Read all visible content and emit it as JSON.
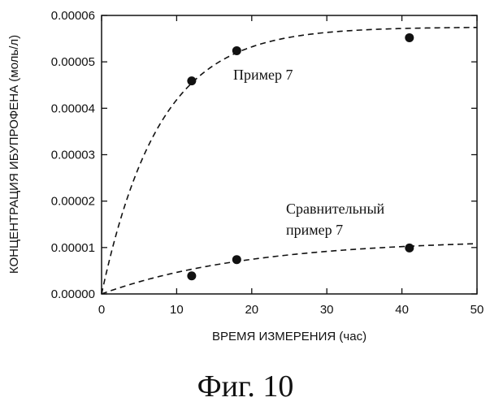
{
  "chart_data": {
    "type": "scatter",
    "xlabel": "ВРЕМЯ ИЗМЕРЕНИЯ (час)",
    "ylabel": "КОНЦЕНТРАЦИЯ ИБУПРОФЕНА (моль/л)",
    "xlim": [
      0,
      50
    ],
    "ylim": [
      0,
      6e-05
    ],
    "x_ticks": [
      "0",
      "10",
      "20",
      "30",
      "40",
      "50"
    ],
    "y_ticks": [
      "0.00000",
      "0.00001",
      "0.00002",
      "0.00003",
      "0.00004",
      "0.00005",
      "0.00006"
    ],
    "grid": false,
    "series": [
      {
        "name": "Пример 7",
        "points": [
          {
            "x": 12,
            "y": 4.59e-05
          },
          {
            "x": 18,
            "y": 5.24e-05
          },
          {
            "x": 41,
            "y": 5.52e-05
          }
        ],
        "fit": {
          "type": "exponential-saturation",
          "a": 5.75e-05,
          "k": 0.13,
          "style": "dashed"
        }
      },
      {
        "name": "Сравнительный пример 7",
        "name_lines": [
          "Сравнительный",
          "пример 7"
        ],
        "points": [
          {
            "x": 12,
            "y": 3.9e-06
          },
          {
            "x": 18,
            "y": 7.4e-06
          },
          {
            "x": 41,
            "y": 9.9e-06
          }
        ],
        "fit": {
          "type": "exponential-saturation",
          "a": 1.18e-05,
          "k": 0.05,
          "style": "dashed"
        }
      }
    ]
  },
  "caption": "Фиг. 10"
}
